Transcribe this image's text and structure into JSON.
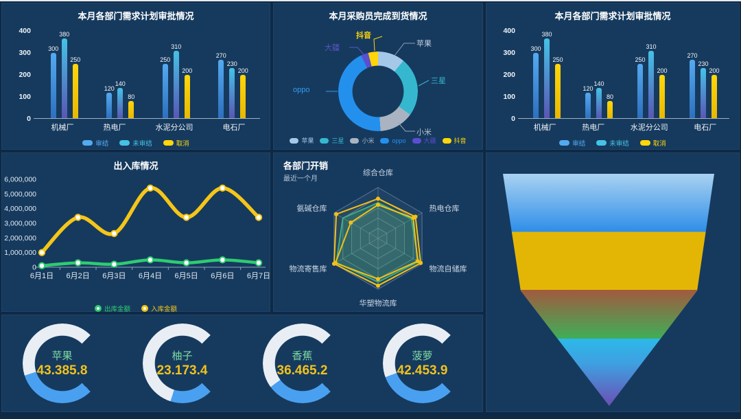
{
  "theme": {
    "page_bg": "#0d2946",
    "panel_bg": "#163a5e",
    "title_color": "#ffffff",
    "axis_label_color": "#eef3f8"
  },
  "chart_data": [
    {
      "type": "bar",
      "title": "本月各部门需求计划审批情况",
      "categories": [
        "机械厂",
        "热电厂",
        "水泥分公司",
        "电石厂"
      ],
      "series": [
        {
          "name": "审结",
          "color": "#54aaf0",
          "color2": "#2d6fbe",
          "values": [
            300,
            120,
            250,
            270
          ]
        },
        {
          "name": "未审结",
          "color": "#45c2e6",
          "color2": "#5a55b4",
          "values": [
            380,
            140,
            310,
            230
          ]
        },
        {
          "name": "取消",
          "color": "#ffd60a",
          "color2": "#e8b800",
          "values": [
            250,
            80,
            200,
            200
          ]
        }
      ],
      "ylim": [
        0,
        400
      ],
      "yticks": [
        0,
        100,
        200,
        300,
        400
      ],
      "legend_position": "bottom",
      "grid": "off"
    },
    {
      "type": "pie",
      "title": "本月采购员完成到货情况",
      "slices": [
        {
          "name": "苹果",
          "value": 11,
          "color": "#a4c8e8",
          "label_color": "#c2cede"
        },
        {
          "name": "三星",
          "value": 24,
          "color": "#35b8cf",
          "label_color": "#35b8cf"
        },
        {
          "name": "小米",
          "value": 14,
          "color": "#a9b3c2",
          "label_color": "#b6c0ce"
        },
        {
          "name": "oppo",
          "value": 44,
          "color": "#2490ee",
          "label_color": "#2f9df0"
        },
        {
          "name": "大疆",
          "value": 3,
          "color": "#5b4ecf",
          "label_color": "#5b55c8"
        },
        {
          "name": "抖音",
          "value": 4,
          "color": "#ffd60a",
          "label_color": "#ffd60a"
        }
      ],
      "legend_position": "bottom"
    },
    {
      "type": "bar",
      "title": "本月各部门需求计划审批情况",
      "categories": [
        "机械厂",
        "热电厂",
        "水泥分公司",
        "电石厂"
      ],
      "series": [
        {
          "name": "审结",
          "color": "#54aaf0",
          "color2": "#2d6fbe",
          "values": [
            300,
            120,
            250,
            270
          ]
        },
        {
          "name": "未审结",
          "color": "#45c2e6",
          "color2": "#5a55b4",
          "values": [
            380,
            140,
            310,
            230
          ]
        },
        {
          "name": "取消",
          "color": "#ffd60a",
          "color2": "#e8b800",
          "values": [
            250,
            80,
            200,
            200
          ]
        }
      ],
      "ylim": [
        0,
        400
      ],
      "yticks": [
        0,
        100,
        200,
        300,
        400
      ],
      "legend_position": "bottom",
      "grid": "off"
    },
    {
      "type": "line",
      "title": "出入库情况",
      "x": [
        "6月1日",
        "6月2日",
        "6月3日",
        "6月4日",
        "6月5日",
        "6月6日",
        "6月7日"
      ],
      "yticks": [
        "0",
        "1,000,000",
        "2,000,000",
        "3,000,000",
        "4,000,000",
        "5,000,000",
        "6,000,000"
      ],
      "ymax": 6000000,
      "series": [
        {
          "name": "出库金额",
          "color": "#2ecc71",
          "values": [
            100000,
            300000,
            200000,
            500000,
            300000,
            500000,
            300000
          ]
        },
        {
          "name": "入库金额",
          "color": "#f5c518",
          "values": [
            1000000,
            3400000,
            2300000,
            5400000,
            3400000,
            5400000,
            3400000
          ]
        }
      ],
      "legend_position": "bottom",
      "grid": "off"
    },
    {
      "type": "radar",
      "title": "各部门开销",
      "subtitle": "最近一个月",
      "axes": [
        "综合仓库",
        "热电仓库",
        "物流自储库",
        "华塑物流库",
        "物流寄售库",
        "氨碱仓库"
      ],
      "max": 100,
      "levels": 5,
      "series": [
        {
          "color": "#2fae8c",
          "fill": "rgba(52,170,140,0.30)",
          "values": [
            70,
            76,
            92,
            86,
            95,
            80
          ],
          "markers": false
        },
        {
          "color": "#f2c118",
          "fill": "rgba(242,193,24,0.06)",
          "values": [
            78,
            85,
            97,
            93,
            100,
            95
          ],
          "markers": true
        },
        {
          "color": "#f2c118",
          "fill": "none",
          "values": [
            66,
            80,
            90,
            80,
            97,
            62
          ],
          "markers": true
        }
      ]
    },
    {
      "type": "funnel",
      "title": "",
      "bands": [
        {
          "start_color": "#a9d2f1",
          "end_color": "#2e8ee8",
          "end_pct": 25
        },
        {
          "start_color": "#e3b606",
          "end_color": "#e3b606",
          "end_pct": 50
        },
        {
          "start_color": "#a25a3e",
          "end_color": "#3fae57",
          "end_pct": 71
        },
        {
          "start_color": "#2cb9ea",
          "mid_color": "#3f9fe0",
          "mid_pct": 82,
          "end_color": "#6b4fb5",
          "end_pct": 100
        }
      ]
    },
    {
      "type": "gauge",
      "fill_color": "#4aa0f0",
      "track_color": "#e9eef5",
      "name_color": "#7fd9a2",
      "value_color": "#f2c21c",
      "gauges": [
        {
          "name": "苹果",
          "value": "43.385.8",
          "percent": 43.4
        },
        {
          "name": "柚子",
          "value": "23.173.4",
          "percent": 23.2
        },
        {
          "name": "香蕉",
          "value": "36.465.2",
          "percent": 36.5
        },
        {
          "name": "菠萝",
          "value": "42.453.9",
          "percent": 42.5
        }
      ]
    }
  ]
}
